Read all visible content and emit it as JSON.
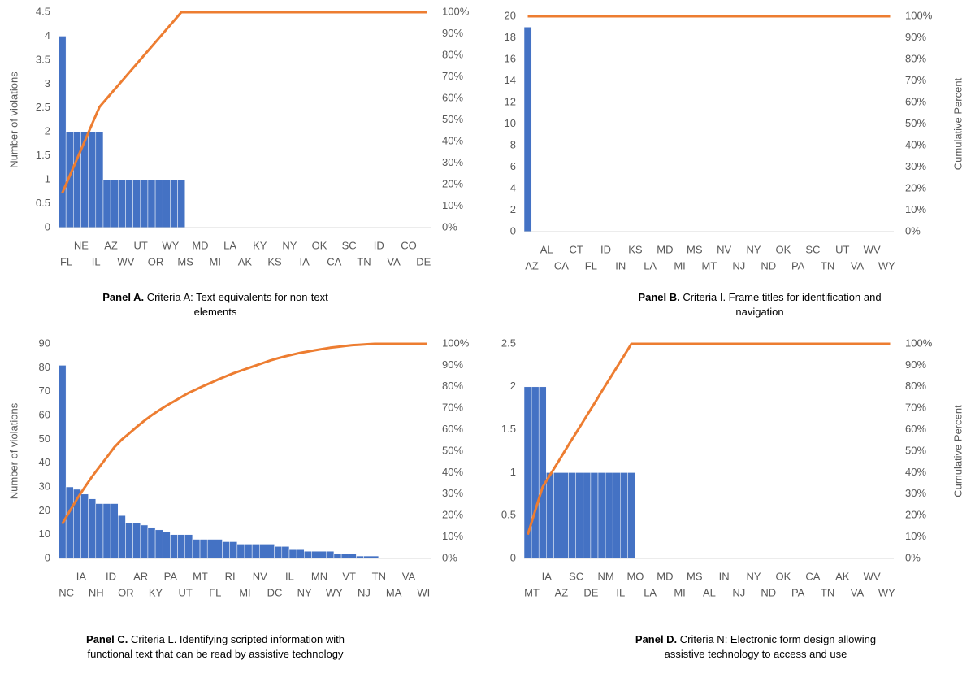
{
  "chart_data": [
    {
      "type": "pareto",
      "panel": "Panel A.",
      "caption": "Criteria A: Text equivalents for non-text elements",
      "ylabel": "Number of violations",
      "categories": [
        "FL",
        null,
        "NE",
        null,
        "IL",
        null,
        "AZ",
        null,
        "WV",
        null,
        "UT",
        null,
        "OR",
        null,
        "WY",
        null,
        "MS",
        null,
        "MD",
        null,
        "MI",
        null,
        "LA",
        null,
        "AK",
        null,
        "KY",
        null,
        "KS",
        null,
        "NY",
        null,
        "IA",
        null,
        "OK",
        null,
        "CA",
        null,
        "SC",
        null,
        "TN",
        null,
        "ID",
        null,
        "VA",
        null,
        "CO",
        null,
        "DE",
        null
      ],
      "series": [
        {
          "color": "#4472c4",
          "values": [
            4,
            2,
            2,
            2,
            2,
            2,
            1,
            1,
            1,
            1,
            1,
            1,
            1,
            1,
            1,
            1,
            1,
            0,
            0,
            0,
            0,
            0,
            0,
            0,
            0,
            0,
            0,
            0,
            0,
            0,
            0,
            0,
            0,
            0,
            0,
            0,
            0,
            0,
            0,
            0,
            0,
            0,
            0,
            0,
            0,
            0,
            0,
            0,
            0,
            0
          ]
        },
        {
          "color": "#ed7d31",
          "axis": "y2",
          "values": [
            16,
            24,
            32,
            40,
            48,
            56,
            60,
            64,
            68,
            72,
            76,
            80,
            84,
            88,
            92,
            96,
            100,
            100,
            100,
            100,
            100,
            100,
            100,
            100,
            100,
            100,
            100,
            100,
            100,
            100,
            100,
            100,
            100,
            100,
            100,
            100,
            100,
            100,
            100,
            100,
            100,
            100,
            100,
            100,
            100,
            100,
            100,
            100,
            100,
            100
          ]
        }
      ],
      "ylim": [
        0,
        4.5
      ],
      "yticks": [
        0,
        0.5,
        1,
        1.5,
        2,
        2.5,
        3,
        3.5,
        4,
        4.5
      ],
      "y2lim": [
        0,
        100
      ],
      "y2ticks": [
        {
          "value": 0,
          "label": "0%"
        },
        {
          "value": 10,
          "label": "10%"
        },
        {
          "value": 20,
          "label": "20%"
        },
        {
          "value": 30,
          "label": "30%"
        },
        {
          "value": 40,
          "label": "40%"
        },
        {
          "value": 50,
          "label": "50%"
        },
        {
          "value": 60,
          "label": "60%"
        },
        {
          "value": 70,
          "label": "70%"
        },
        {
          "value": 80,
          "label": "80%"
        },
        {
          "value": 90,
          "label": "90%"
        },
        {
          "value": 100,
          "label": "100%"
        }
      ]
    },
    {
      "type": "pareto",
      "panel": "Panel B.",
      "caption": "Criteria I. Frame titles for identification and navigation",
      "y2label": "Cumulative Percent",
      "categories": [
        "AZ",
        null,
        "AL",
        null,
        "CA",
        null,
        "CT",
        null,
        "FL",
        null,
        "ID",
        null,
        "IN",
        null,
        "KS",
        null,
        "LA",
        null,
        "MD",
        null,
        "MI",
        null,
        "MS",
        null,
        "MT",
        null,
        "NV",
        null,
        "NJ",
        null,
        "NY",
        null,
        "ND",
        null,
        "OK",
        null,
        "PA",
        null,
        "SC",
        null,
        "TN",
        null,
        "UT",
        null,
        "VA",
        null,
        "WV",
        null,
        "WY",
        null
      ],
      "series": [
        {
          "color": "#4472c4",
          "values": [
            19,
            0,
            0,
            0,
            0,
            0,
            0,
            0,
            0,
            0,
            0,
            0,
            0,
            0,
            0,
            0,
            0,
            0,
            0,
            0,
            0,
            0,
            0,
            0,
            0,
            0,
            0,
            0,
            0,
            0,
            0,
            0,
            0,
            0,
            0,
            0,
            0,
            0,
            0,
            0,
            0,
            0,
            0,
            0,
            0,
            0,
            0,
            0,
            0,
            0
          ]
        },
        {
          "color": "#ed7d31",
          "axis": "y2",
          "values": [
            100,
            100,
            100,
            100,
            100,
            100,
            100,
            100,
            100,
            100,
            100,
            100,
            100,
            100,
            100,
            100,
            100,
            100,
            100,
            100,
            100,
            100,
            100,
            100,
            100,
            100,
            100,
            100,
            100,
            100,
            100,
            100,
            100,
            100,
            100,
            100,
            100,
            100,
            100,
            100,
            100,
            100,
            100,
            100,
            100,
            100,
            100,
            100,
            100,
            100
          ]
        }
      ],
      "ylim": [
        0,
        20
      ],
      "yticks": [
        0,
        2,
        4,
        6,
        8,
        10,
        12,
        14,
        16,
        18,
        20
      ],
      "y2lim": [
        0,
        100
      ],
      "y2ticks": [
        {
          "value": 0,
          "label": "0%"
        },
        {
          "value": 10,
          "label": "10%"
        },
        {
          "value": 20,
          "label": "20%"
        },
        {
          "value": 30,
          "label": "30%"
        },
        {
          "value": 40,
          "label": "40%"
        },
        {
          "value": 50,
          "label": "50%"
        },
        {
          "value": 60,
          "label": "60%"
        },
        {
          "value": 70,
          "label": "70%"
        },
        {
          "value": 80,
          "label": "80%"
        },
        {
          "value": 90,
          "label": "90%"
        },
        {
          "value": 100,
          "label": "100%"
        }
      ]
    },
    {
      "type": "pareto",
      "panel": "Panel C.",
      "caption": "Criteria L. Identifying scripted information with functional text that can be read by assistive technology",
      "ylabel": "Number of violations",
      "categories": [
        "NC",
        null,
        "IA",
        null,
        "NH",
        null,
        "ID",
        null,
        "OR",
        null,
        "AR",
        null,
        "KY",
        null,
        "PA",
        null,
        "UT",
        null,
        "MT",
        null,
        "FL",
        null,
        "RI",
        null,
        "MI",
        null,
        "NV",
        null,
        "DC",
        null,
        "IL",
        null,
        "NY",
        null,
        "MN",
        null,
        "WY",
        null,
        "VT",
        null,
        "NJ",
        null,
        "TN",
        null,
        "MA",
        null,
        "VA",
        null,
        "WI",
        null
      ],
      "series": [
        {
          "color": "#4472c4",
          "values": [
            81,
            30,
            29,
            27,
            25,
            23,
            23,
            23,
            18,
            15,
            15,
            14,
            13,
            12,
            11,
            10,
            10,
            10,
            8,
            8,
            8,
            8,
            7,
            7,
            6,
            6,
            6,
            6,
            6,
            5,
            5,
            4,
            4,
            3,
            3,
            3,
            3,
            2,
            2,
            2,
            1,
            1,
            1,
            0,
            0,
            0,
            0,
            0,
            0,
            0
          ]
        },
        {
          "color": "#ed7d31",
          "axis": "y2",
          "values": [
            16.1,
            22.0,
            27.8,
            33.1,
            38.1,
            42.7,
            47.2,
            51.8,
            55.4,
            58.3,
            61.3,
            64.1,
            66.7,
            69.0,
            71.2,
            73.2,
            75.2,
            77.2,
            78.8,
            80.4,
            81.9,
            83.5,
            84.9,
            86.3,
            87.5,
            88.7,
            89.9,
            91.1,
            92.3,
            93.3,
            94.2,
            95.0,
            95.8,
            96.4,
            97.0,
            97.6,
            98.2,
            98.6,
            99.0,
            99.4,
            99.6,
            99.8,
            100,
            100,
            100,
            100,
            100,
            100,
            100,
            100
          ]
        }
      ],
      "ylim": [
        0,
        90
      ],
      "yticks": [
        0,
        10,
        20,
        30,
        40,
        50,
        60,
        70,
        80,
        90
      ],
      "y2lim": [
        0,
        100
      ],
      "y2ticks": [
        {
          "value": 0,
          "label": "0%"
        },
        {
          "value": 10,
          "label": "10%"
        },
        {
          "value": 20,
          "label": "20%"
        },
        {
          "value": 30,
          "label": "30%"
        },
        {
          "value": 40,
          "label": "40%"
        },
        {
          "value": 50,
          "label": "50%"
        },
        {
          "value": 60,
          "label": "60%"
        },
        {
          "value": 70,
          "label": "70%"
        },
        {
          "value": 80,
          "label": "80%"
        },
        {
          "value": 90,
          "label": "90%"
        },
        {
          "value": 100,
          "label": "100%"
        }
      ]
    },
    {
      "type": "pareto",
      "panel": "Panel D.",
      "caption": "Criteria N: Electronic form design allowing assistive technology to access and use",
      "y2label": "Cumulative Percent",
      "categories": [
        "MT",
        null,
        "IA",
        null,
        "AZ",
        null,
        "SC",
        null,
        "DE",
        null,
        "NM",
        null,
        "IL",
        null,
        "MO",
        null,
        "LA",
        null,
        "MD",
        null,
        "MI",
        null,
        "MS",
        null,
        "AL",
        null,
        "IN",
        null,
        "NJ",
        null,
        "NY",
        null,
        "ND",
        null,
        "OK",
        null,
        "PA",
        null,
        "CA",
        null,
        "TN",
        null,
        "AK",
        null,
        "VA",
        null,
        "WV",
        null,
        "WY",
        null
      ],
      "series": [
        {
          "color": "#4472c4",
          "values": [
            2,
            2,
            2,
            1,
            1,
            1,
            1,
            1,
            1,
            1,
            1,
            1,
            1,
            1,
            1,
            0,
            0,
            0,
            0,
            0,
            0,
            0,
            0,
            0,
            0,
            0,
            0,
            0,
            0,
            0,
            0,
            0,
            0,
            0,
            0,
            0,
            0,
            0,
            0,
            0,
            0,
            0,
            0,
            0,
            0,
            0,
            0,
            0,
            0,
            0
          ]
        },
        {
          "color": "#ed7d31",
          "axis": "y2",
          "values": [
            11.1,
            22.2,
            33.3,
            38.9,
            44.4,
            50,
            55.6,
            61.1,
            66.7,
            72.2,
            77.8,
            83.3,
            88.9,
            94.4,
            100,
            100,
            100,
            100,
            100,
            100,
            100,
            100,
            100,
            100,
            100,
            100,
            100,
            100,
            100,
            100,
            100,
            100,
            100,
            100,
            100,
            100,
            100,
            100,
            100,
            100,
            100,
            100,
            100,
            100,
            100,
            100,
            100,
            100,
            100,
            100
          ]
        }
      ],
      "ylim": [
        0,
        2.5
      ],
      "yticks": [
        0,
        0.5,
        1,
        1.5,
        2,
        2.5
      ],
      "y2lim": [
        0,
        100
      ],
      "y2ticks": [
        {
          "value": 0,
          "label": "0%"
        },
        {
          "value": 10,
          "label": "10%"
        },
        {
          "value": 20,
          "label": "20%"
        },
        {
          "value": 30,
          "label": "30%"
        },
        {
          "value": 40,
          "label": "40%"
        },
        {
          "value": 50,
          "label": "50%"
        },
        {
          "value": 60,
          "label": "60%"
        },
        {
          "value": 70,
          "label": "70%"
        },
        {
          "value": 80,
          "label": "80%"
        },
        {
          "value": 90,
          "label": "90%"
        },
        {
          "value": 100,
          "label": "100%"
        }
      ]
    }
  ]
}
